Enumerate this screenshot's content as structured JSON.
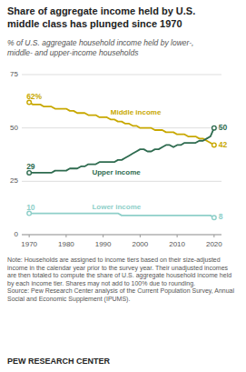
{
  "chart_data": {
    "type": "line",
    "title": "Share of aggregate income held by U.S.\nmiddle class has plunged since 1970",
    "subtitle": "% of U.S. aggregate household income held by lower-,\nmiddle- and upper-income households",
    "note": "Note: Households are assigned to income tiers based on their size-adjusted income in the calendar year prior to the survey year. Their unadjusted incomes are then totaled to compute the share of U.S. aggregate household income held by each income tier. Shares may not add to 100% due to rounding.",
    "source": "Source: Pew Research Center analysis of the Current Population Survey, Annual Social and Economic Supplement (IPUMS).",
    "footer": "PEW RESEARCH CENTER",
    "x": [
      1970,
      1971,
      1972,
      1973,
      1974,
      1975,
      1976,
      1977,
      1978,
      1979,
      1980,
      1981,
      1982,
      1983,
      1984,
      1985,
      1986,
      1987,
      1988,
      1989,
      1990,
      1991,
      1992,
      1993,
      1994,
      1995,
      1996,
      1997,
      1998,
      1999,
      2000,
      2001,
      2002,
      2003,
      2004,
      2005,
      2006,
      2007,
      2008,
      2009,
      2010,
      2011,
      2012,
      2013,
      2014,
      2015,
      2016,
      2017,
      2018,
      2019,
      2020
    ],
    "series": [
      {
        "name": "Middle income",
        "color": "#c8a800",
        "values": [
          62,
          61,
          61,
          61,
          60,
          60,
          60,
          59,
          59,
          59,
          59,
          58,
          58,
          57,
          57,
          57,
          56,
          56,
          56,
          55,
          55,
          55,
          54,
          54,
          53,
          53,
          52,
          52,
          51,
          51,
          50,
          50,
          50,
          50,
          49,
          49,
          49,
          48,
          48,
          48,
          47,
          47,
          47,
          46,
          46,
          46,
          45,
          45,
          44,
          43,
          42
        ],
        "value_labels": [
          "62%",
          null,
          null,
          null,
          null,
          null,
          null,
          null,
          null,
          null,
          null,
          null,
          null,
          null,
          null,
          null,
          null,
          null,
          null,
          null,
          null,
          null,
          null,
          null,
          null,
          null,
          null,
          null,
          null,
          null,
          null,
          null,
          null,
          null,
          null,
          null,
          null,
          null,
          null,
          null,
          null,
          null,
          null,
          null,
          null,
          null,
          null,
          null,
          null,
          null,
          "42"
        ]
      },
      {
        "name": "Upper income",
        "color": "#2e6b4f",
        "values": [
          29,
          29,
          29,
          29,
          29,
          29,
          29,
          30,
          30,
          30,
          30,
          31,
          31,
          31,
          32,
          32,
          33,
          33,
          33,
          34,
          34,
          34,
          34,
          34,
          35,
          35,
          36,
          37,
          38,
          39,
          40,
          40,
          39,
          39,
          40,
          40,
          41,
          42,
          42,
          41,
          42,
          42,
          43,
          43,
          43,
          43,
          44,
          44,
          45,
          46,
          50
        ],
        "value_labels": [
          "29",
          null,
          null,
          null,
          null,
          null,
          null,
          null,
          null,
          null,
          null,
          null,
          null,
          null,
          null,
          null,
          null,
          null,
          null,
          null,
          null,
          null,
          null,
          null,
          null,
          null,
          null,
          null,
          null,
          null,
          null,
          null,
          null,
          null,
          null,
          null,
          null,
          null,
          null,
          null,
          null,
          null,
          null,
          null,
          null,
          null,
          null,
          null,
          null,
          null,
          "50"
        ]
      },
      {
        "name": "Lower income",
        "color": "#8ecfc9",
        "values": [
          10,
          10,
          10,
          10,
          10,
          10,
          10,
          10,
          10,
          10,
          10,
          10,
          10,
          10,
          10,
          10,
          10,
          10,
          10,
          10,
          10,
          10,
          10,
          10,
          10,
          9,
          9,
          9,
          9,
          9,
          9,
          9,
          9,
          9,
          9,
          9,
          9,
          9,
          9,
          9,
          9,
          9,
          9,
          9,
          9,
          9,
          9,
          9,
          9,
          9,
          8
        ],
        "value_labels": [
          "10",
          null,
          null,
          null,
          null,
          null,
          null,
          null,
          null,
          null,
          null,
          null,
          null,
          null,
          null,
          null,
          null,
          null,
          null,
          null,
          null,
          null,
          null,
          null,
          null,
          null,
          null,
          null,
          null,
          null,
          null,
          null,
          null,
          null,
          null,
          null,
          null,
          null,
          null,
          null,
          null,
          null,
          null,
          null,
          null,
          null,
          null,
          null,
          null,
          null,
          "8"
        ]
      }
    ],
    "xlim": [
      1968,
      2022
    ],
    "ylim": [
      0,
      75
    ],
    "xticks": [
      1970,
      1980,
      1990,
      2000,
      2010,
      2020
    ],
    "yticks": [
      0,
      25,
      50,
      75
    ],
    "grid": true
  }
}
